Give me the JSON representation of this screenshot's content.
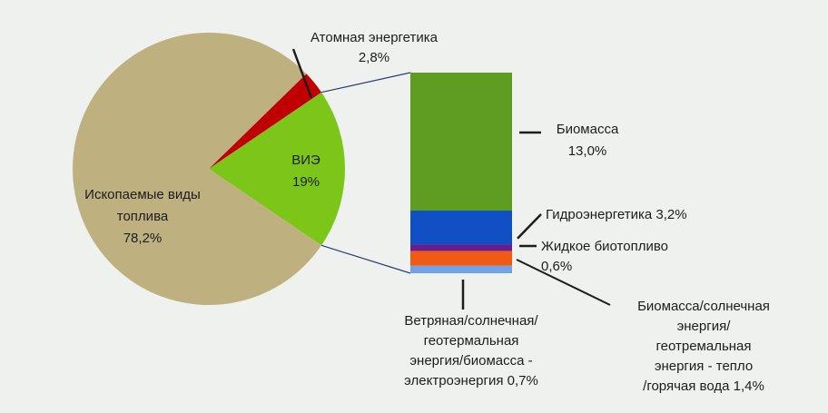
{
  "chart_data": [
    {
      "type": "pie",
      "slices": [
        {
          "label": "Ископаемые виды топлива",
          "value": 78.2,
          "value_label": "78,2%",
          "color": "#bfb07f"
        },
        {
          "label": "Атомная энергетика",
          "value": 2.8,
          "value_label": "2,8%",
          "color": "#c00000"
        },
        {
          "label": "ВИЭ",
          "value": 19,
          "value_label": "19%",
          "color": "#7cc61a"
        }
      ]
    },
    {
      "type": "bar",
      "stacked": true,
      "categories": [
        "ВИЭ"
      ],
      "series": [
        {
          "name": "Биомасса",
          "values": [
            13.0
          ],
          "value_label": "13,0%",
          "color": "#5e9c22"
        },
        {
          "name": "Гидроэнергетика",
          "values": [
            3.2
          ],
          "value_label": "3,2%",
          "color": "#1150c4"
        },
        {
          "name": "Жидкое биотопливо",
          "values": [
            0.6
          ],
          "value_label": "0,6%",
          "color": "#6a1d8c"
        },
        {
          "name": "Биомасса/солнечная энергия/ геотремальная энергия - тепло /горячая вода",
          "values": [
            1.4
          ],
          "value_label": "1,4%",
          "color": "#f05a14"
        },
        {
          "name": "Ветряная/солнечная/ геотермальная энергия/биомасса - электроэнергия",
          "values": [
            0.7
          ],
          "value_label": "0,7%",
          "color": "#6fa2e8"
        }
      ]
    }
  ],
  "labels": {
    "fossil": [
      "Ископаемые виды",
      "топлива",
      "78,2%"
    ],
    "nuclear": [
      "Атомная энергетика",
      "2,8%"
    ],
    "renewables": [
      "ВИЭ",
      "19%"
    ],
    "biomass": [
      "Биомасса",
      "13,0%"
    ],
    "hydro": [
      "Гидроэнергетика 3,2%"
    ],
    "biofuel": [
      "Жидкое биотопливо",
      "0,6%"
    ],
    "heat": [
      "Биомасса/солнечная",
      "энергия/",
      "геотремальная",
      "энергия - тепло",
      "/горячая вода 1,4%"
    ],
    "electricity": [
      "Ветряная/солнечная/",
      "геотермальная",
      "энергия/биомасса -",
      "электроэнергия 0,7%"
    ]
  }
}
